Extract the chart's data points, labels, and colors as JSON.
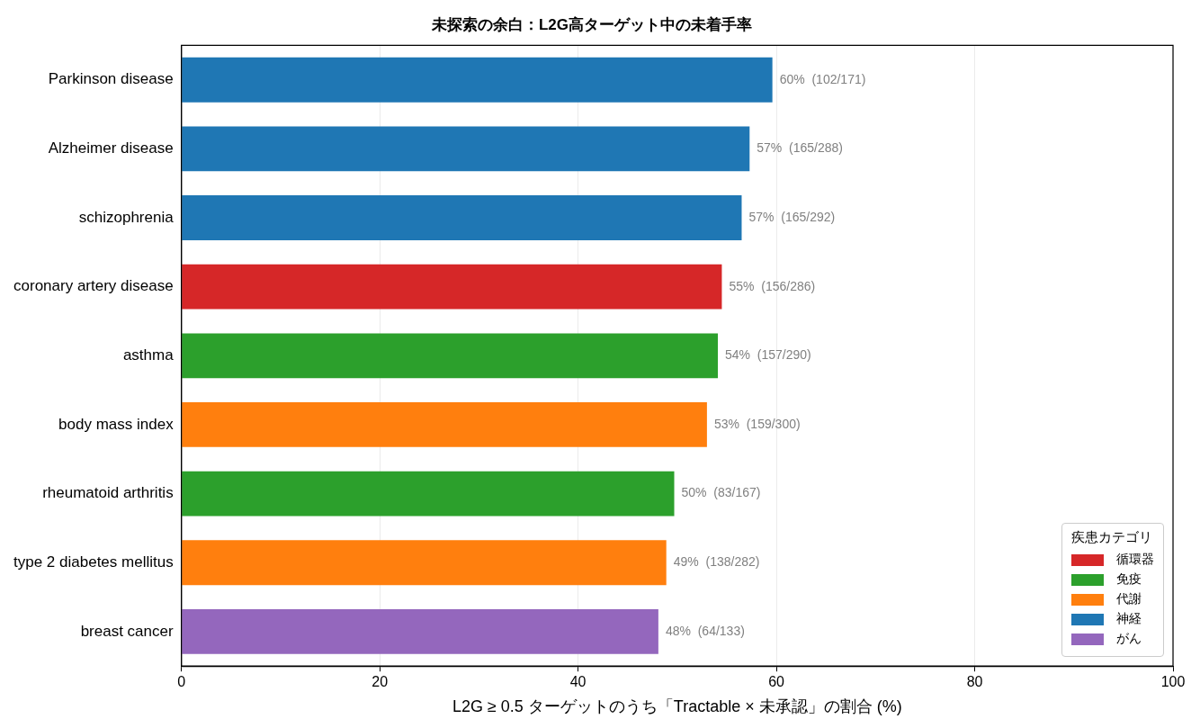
{
  "chart_data": {
    "type": "bar",
    "orientation": "horizontal",
    "title": "未探索の余白：L2G高ターゲット中の未着手率",
    "xlabel": "L2G ≥ 0.5 ターゲットのうち「Tractable × 未承認」の割合 (%)",
    "legend_title": "疾患カテゴリ",
    "legend": "bottom right",
    "grid": "x",
    "categories": [
      "Parkinson disease",
      "Alzheimer disease",
      "schizophrenia",
      "coronary artery disease",
      "asthma",
      "body mass index",
      "rheumatoid arthritis",
      "type 2 diabetes mellitus",
      "breast cancer"
    ],
    "xlim": [
      0,
      100
    ],
    "xticks": [
      0,
      20,
      40,
      60,
      80,
      100
    ],
    "series": [
      {
        "name": "循環器",
        "color": "#d62728",
        "values": [
          null,
          null,
          null,
          54.5,
          null,
          null,
          null,
          null,
          null
        ],
        "value_labels": [
          null,
          null,
          null,
          "55%  (156/286)",
          null,
          null,
          null,
          null,
          null
        ]
      },
      {
        "name": "免疫",
        "color": "#2ca02c",
        "values": [
          null,
          null,
          null,
          null,
          54.1,
          null,
          49.7,
          null,
          null
        ],
        "value_labels": [
          null,
          null,
          null,
          null,
          "54%  (157/290)",
          null,
          "50%  (83/167)",
          null,
          null
        ]
      },
      {
        "name": "代謝",
        "color": "#ff7f0e",
        "values": [
          null,
          null,
          null,
          null,
          null,
          53.0,
          null,
          48.9,
          null
        ],
        "value_labels": [
          null,
          null,
          null,
          null,
          null,
          "53%  (159/300)",
          null,
          "49%  (138/282)",
          null
        ]
      },
      {
        "name": "神経",
        "color": "#1f77b4",
        "values": [
          59.6,
          57.3,
          56.5,
          null,
          null,
          null,
          null,
          null,
          null
        ],
        "value_labels": [
          "60%  (102/171)",
          "57%  (165/288)",
          "57%  (165/292)",
          null,
          null,
          null,
          null,
          null,
          null
        ]
      },
      {
        "name": "がん",
        "color": "#9467bd",
        "values": [
          null,
          null,
          null,
          null,
          null,
          null,
          null,
          null,
          48.1
        ],
        "value_labels": [
          null,
          null,
          null,
          null,
          null,
          null,
          null,
          null,
          "48%  (64/133)"
        ]
      }
    ]
  }
}
